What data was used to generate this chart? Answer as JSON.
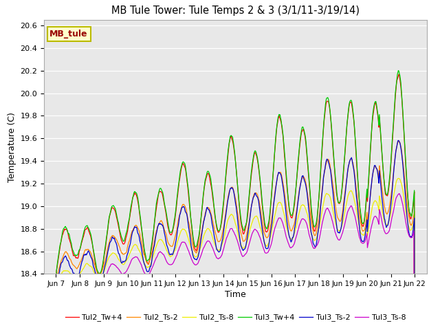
{
  "title": "MB Tule Tower: Tule Temps 2 & 3 (3/1/11-3/19/14)",
  "xlabel": "Time",
  "ylabel": "Temperature (C)",
  "xlim": [
    6.5,
    22.5
  ],
  "ylim": [
    18.4,
    20.65
  ],
  "xtick_labels": [
    "Jun 7",
    "Jun 8",
    "Jun 9",
    "Jun 10",
    "Jun 11",
    "Jun 12",
    "Jun 13",
    "Jun 14",
    "Jun 15",
    "Jun 16",
    "Jun 17",
    "Jun 18",
    "Jun 19",
    "Jun 20",
    "Jun 21",
    "Jun 22"
  ],
  "xtick_positions": [
    7,
    8,
    9,
    10,
    11,
    12,
    13,
    14,
    15,
    16,
    17,
    18,
    19,
    20,
    21,
    22
  ],
  "ytick_values": [
    18.4,
    18.6,
    18.8,
    19.0,
    19.2,
    19.4,
    19.6,
    19.8,
    20.0,
    20.2,
    20.4,
    20.6
  ],
  "bg_color": "#e8e8e8",
  "grid_color": "#ffffff",
  "legend_label": "MB_tule",
  "legend_bg": "#ffffcc",
  "legend_border": "#bbbb00",
  "series_colors": {
    "Tul2_Tw+4": "#ff0000",
    "Tul2_Ts-2": "#ff8800",
    "Tul2_Ts-8": "#eeee00",
    "Tul3_Tw+4": "#00cc00",
    "Tul3_Ts-2": "#0000cc",
    "Tul3_Ts-8": "#cc00cc"
  },
  "series_labels": [
    "Tul2_Tw+4",
    "Tul2_Ts-2",
    "Tul2_Ts-8",
    "Tul3_Tw+4",
    "Tul3_Ts-2",
    "Tul3_Ts-8"
  ]
}
